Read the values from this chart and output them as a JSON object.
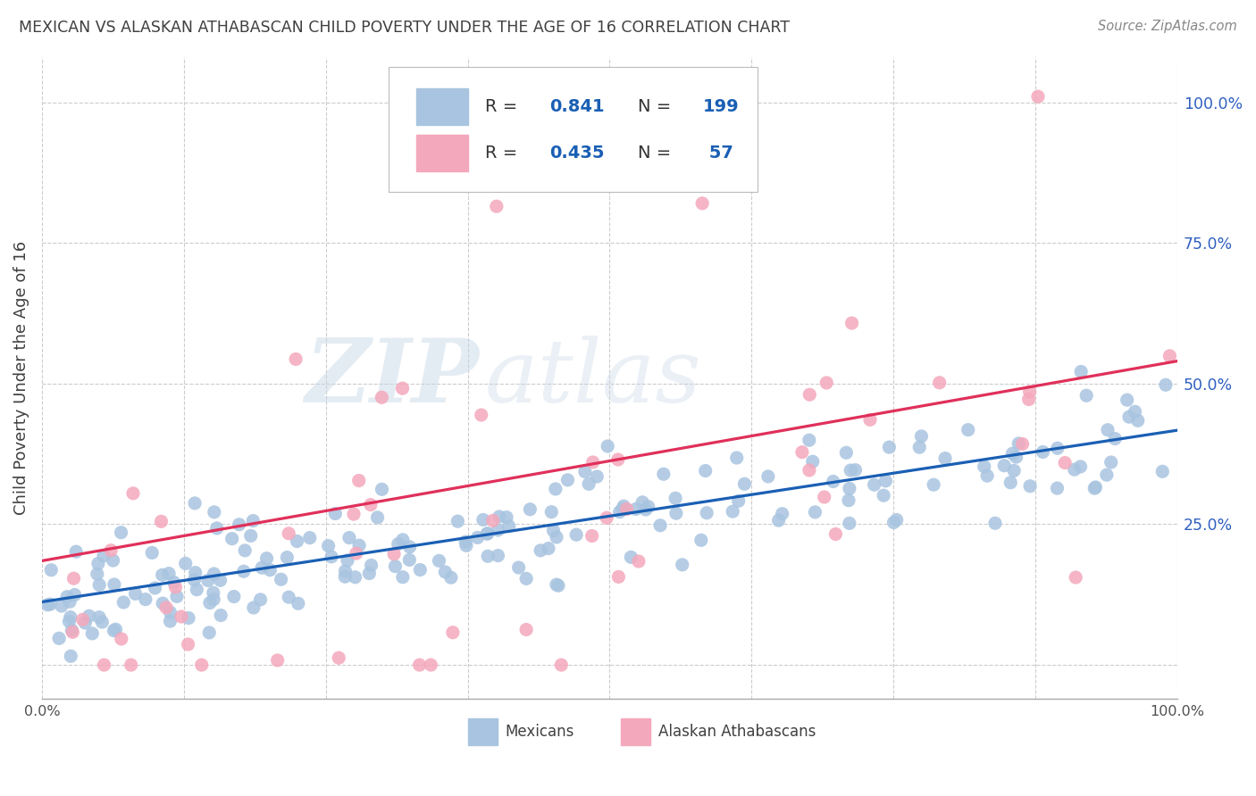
{
  "title": "MEXICAN VS ALASKAN ATHABASCAN CHILD POVERTY UNDER THE AGE OF 16 CORRELATION CHART",
  "source": "Source: ZipAtlas.com",
  "ylabel": "Child Poverty Under the Age of 16",
  "xlim": [
    0.0,
    1.0
  ],
  "ylim": [
    -0.06,
    1.08
  ],
  "yticks": [
    0.0,
    0.25,
    0.5,
    0.75,
    1.0
  ],
  "ytick_labels": [
    "",
    "25.0%",
    "50.0%",
    "75.0%",
    "100.0%"
  ],
  "xticks": [
    0.0,
    0.125,
    0.25,
    0.375,
    0.5,
    0.625,
    0.75,
    0.875,
    1.0
  ],
  "xtick_labels": [
    "0.0%",
    "",
    "",
    "",
    "",
    "",
    "",
    "",
    "100.0%"
  ],
  "blue_R": 0.841,
  "blue_N": 199,
  "pink_R": 0.435,
  "pink_N": 57,
  "blue_scatter_color": "#a8c4e0",
  "pink_scatter_color": "#f4a8bc",
  "blue_line_color": "#1a5fb4",
  "pink_line_color": "#e0305a",
  "legend_label_blue": "Mexicans",
  "legend_label_pink": "Alaskan Athabascans",
  "watermark_zip": "ZIP",
  "watermark_atlas": "atlas",
  "background_color": "#ffffff",
  "grid_color": "#cccccc",
  "title_color": "#404040",
  "right_tick_color": "#3060c0",
  "blue_slope": 0.305,
  "blue_intercept": 0.112,
  "pink_slope": 0.355,
  "pink_intercept": 0.185
}
